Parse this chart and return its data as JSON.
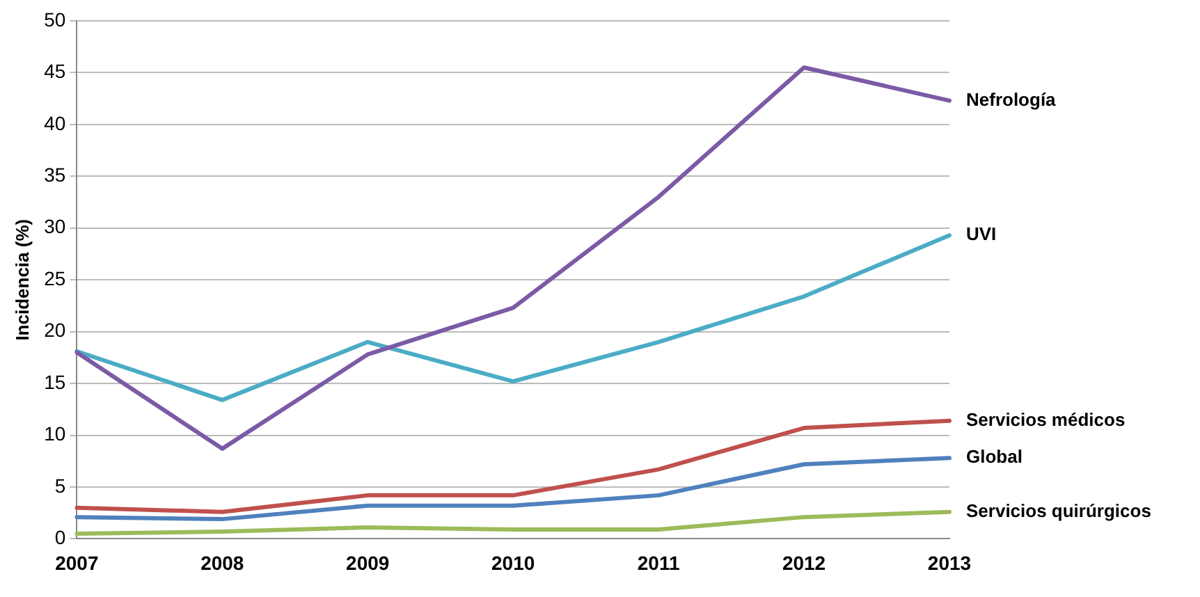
{
  "chart_data": {
    "type": "line",
    "ylabel": "Incidencia (%)",
    "categories": [
      "2007",
      "2008",
      "2009",
      "2010",
      "2011",
      "2012",
      "2013"
    ],
    "series": [
      {
        "name": "Nefrología",
        "color": "#7b5aa6",
        "values": [
          18,
          8.7,
          17.8,
          22.3,
          33,
          45.5,
          42.3
        ]
      },
      {
        "name": "UVI",
        "color": "#4bacc6",
        "values": [
          18.1,
          13.4,
          19,
          15.2,
          19,
          23.4,
          29.3
        ]
      },
      {
        "name": "Servicios médicos",
        "color": "#c0504d",
        "values": [
          3,
          2.6,
          4.2,
          4.2,
          6.7,
          10.7,
          11.4
        ]
      },
      {
        "name": "Global",
        "color": "#4f81bd",
        "values": [
          2.1,
          1.9,
          3.2,
          3.2,
          4.2,
          7.2,
          7.8
        ]
      },
      {
        "name": "Servicios quirúrgicos",
        "color": "#9bbb59",
        "values": [
          0.5,
          0.7,
          1.1,
          0.9,
          0.9,
          2.1,
          2.6
        ]
      }
    ],
    "ylim": [
      0,
      50
    ],
    "yticks": [
      0,
      5,
      10,
      15,
      20,
      25,
      30,
      35,
      40,
      45,
      50
    ],
    "grid": "y",
    "legend": false,
    "marker": "none",
    "line_style": "solid"
  }
}
